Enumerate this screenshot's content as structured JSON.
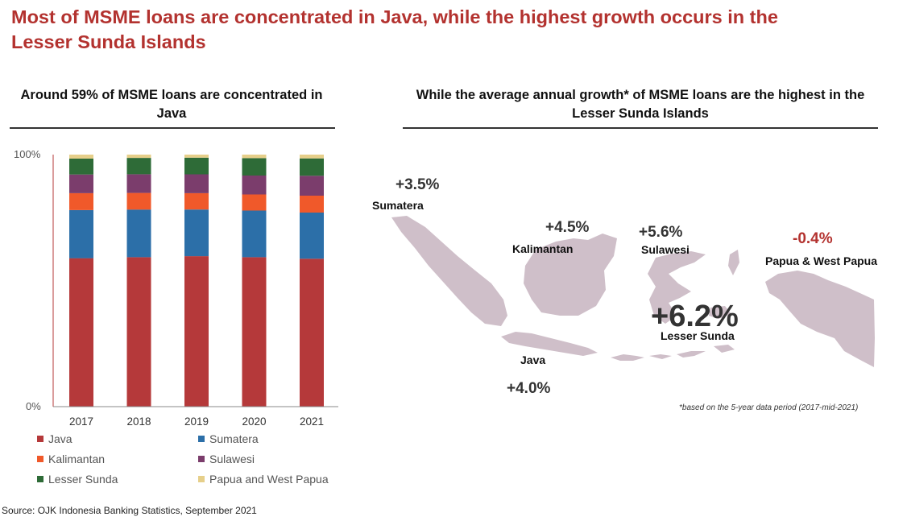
{
  "title": "Most of MSME loans are concentrated in Java, while the highest growth occurs in the Lesser Sunda Islands",
  "left_subtitle": "Around 59% of MSME loans are concentrated in Java",
  "right_subtitle": "While the average annual growth* of MSME loans are the highest in the Lesser Sunda Islands",
  "chart_data": [
    {
      "type": "bar",
      "stacked": true,
      "categories": [
        "2017",
        "2018",
        "2019",
        "2020",
        "2021"
      ],
      "y_tick_labels": [
        "0%",
        "100%"
      ],
      "ylim": [
        0,
        100
      ],
      "grid": false,
      "legend_position": "bottom",
      "series": [
        {
          "name": "Java",
          "color": "#b5393a",
          "values": [
            58.9,
            59.3,
            59.7,
            59.3,
            58.7
          ]
        },
        {
          "name": "Sumatera",
          "color": "#2c6fa8",
          "values": [
            19.1,
            18.9,
            18.5,
            18.5,
            18.3
          ]
        },
        {
          "name": "Kalimantan",
          "color": "#f0592a",
          "values": [
            6.7,
            6.6,
            6.5,
            6.4,
            6.7
          ]
        },
        {
          "name": "Sulawesi",
          "color": "#7b3d6c",
          "values": [
            7.4,
            7.4,
            7.5,
            7.5,
            7.9
          ]
        },
        {
          "name": "Lesser Sunda",
          "color": "#2e6b37",
          "values": [
            6.3,
            6.5,
            6.6,
            6.9,
            6.9
          ]
        },
        {
          "name": "Papua and West Papua",
          "color": "#e6cf8a",
          "values": [
            1.6,
            1.3,
            1.2,
            1.4,
            1.5
          ]
        }
      ]
    },
    {
      "type": "map",
      "map_color": "#cfbfc9",
      "regions": [
        {
          "name": "Sumatera",
          "growth": "+3.5%",
          "color": "#333333"
        },
        {
          "name": "Kalimantan",
          "growth": "+4.5%",
          "color": "#333333"
        },
        {
          "name": "Sulawesi",
          "growth": "+5.6%",
          "color": "#333333"
        },
        {
          "name": "Papua & West Papua",
          "growth": "-0.4%",
          "color": "#b3322f"
        },
        {
          "name": "Lesser Sunda",
          "growth": "+6.2%",
          "color": "#333333"
        },
        {
          "name": "Java",
          "growth": "+4.0%",
          "color": "#333333"
        }
      ]
    }
  ],
  "footnote": "*based on the 5-year data period (2017-mid-2021)",
  "source": "Source: OJK Indonesia Banking Statistics, September 2021"
}
